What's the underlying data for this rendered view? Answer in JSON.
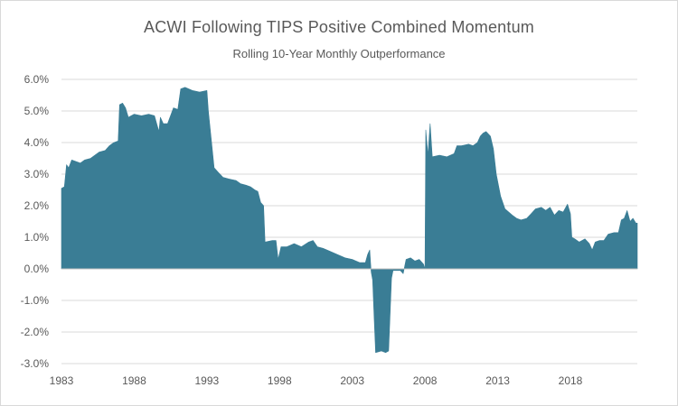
{
  "chart_data": {
    "type": "area",
    "title": "ACWI Following TIPS Positive Combined Momentum",
    "subtitle": "Rolling 10-Year Monthly Outperformance",
    "xlabel": "",
    "ylabel": "",
    "xlim": [
      1983.0,
      2022.6
    ],
    "ylim": [
      -3.0,
      6.0
    ],
    "y_ticks": [
      {
        "value": 6.0,
        "label": "6.0%"
      },
      {
        "value": 5.0,
        "label": "5.0%"
      },
      {
        "value": 4.0,
        "label": "4.0%"
      },
      {
        "value": 3.0,
        "label": "3.0%"
      },
      {
        "value": 2.0,
        "label": "2.0%"
      },
      {
        "value": 1.0,
        "label": "1.0%"
      },
      {
        "value": 0.0,
        "label": "0.0%"
      },
      {
        "value": -1.0,
        "label": "-1.0%"
      },
      {
        "value": -2.0,
        "label": "-2.0%"
      },
      {
        "value": -3.0,
        "label": "-3.0%"
      }
    ],
    "x_ticks": [
      {
        "value": 1983,
        "label": "1983"
      },
      {
        "value": 1988,
        "label": "1988"
      },
      {
        "value": 1993,
        "label": "1993"
      },
      {
        "value": 1998,
        "label": "1998"
      },
      {
        "value": 2003,
        "label": "2003"
      },
      {
        "value": 2008,
        "label": "2008"
      },
      {
        "value": 2013,
        "label": "2013"
      },
      {
        "value": 2018,
        "label": "2018"
      }
    ],
    "grid": true,
    "colors": {
      "area": "#3a7d95",
      "grid": "#d9d9d9",
      "text": "#595959"
    },
    "series": [
      {
        "name": "",
        "points": [
          [
            1983.0,
            2.55
          ],
          [
            1983.2,
            2.6
          ],
          [
            1983.35,
            3.3
          ],
          [
            1983.5,
            3.2
          ],
          [
            1983.7,
            3.45
          ],
          [
            1984.0,
            3.4
          ],
          [
            1984.3,
            3.35
          ],
          [
            1984.6,
            3.45
          ],
          [
            1985.0,
            3.5
          ],
          [
            1985.3,
            3.6
          ],
          [
            1985.6,
            3.7
          ],
          [
            1986.0,
            3.75
          ],
          [
            1986.3,
            3.9
          ],
          [
            1986.6,
            4.0
          ],
          [
            1986.9,
            4.05
          ],
          [
            1987.0,
            5.2
          ],
          [
            1987.2,
            5.25
          ],
          [
            1987.4,
            5.1
          ],
          [
            1987.6,
            4.8
          ],
          [
            1987.8,
            4.85
          ],
          [
            1988.0,
            4.9
          ],
          [
            1988.5,
            4.85
          ],
          [
            1989.0,
            4.9
          ],
          [
            1989.4,
            4.85
          ],
          [
            1989.7,
            4.35
          ],
          [
            1989.8,
            4.8
          ],
          [
            1990.0,
            4.6
          ],
          [
            1990.3,
            4.6
          ],
          [
            1990.7,
            5.1
          ],
          [
            1991.0,
            5.05
          ],
          [
            1991.2,
            5.7
          ],
          [
            1991.5,
            5.75
          ],
          [
            1992.0,
            5.65
          ],
          [
            1992.5,
            5.6
          ],
          [
            1993.0,
            5.65
          ],
          [
            1993.1,
            5.0
          ],
          [
            1993.3,
            4.1
          ],
          [
            1993.5,
            3.2
          ],
          [
            1993.8,
            3.05
          ],
          [
            1994.1,
            2.9
          ],
          [
            1994.5,
            2.85
          ],
          [
            1995.0,
            2.8
          ],
          [
            1995.3,
            2.7
          ],
          [
            1995.7,
            2.65
          ],
          [
            1996.0,
            2.6
          ],
          [
            1996.3,
            2.5
          ],
          [
            1996.5,
            2.45
          ],
          [
            1996.7,
            2.1
          ],
          [
            1996.9,
            2.0
          ],
          [
            1997.0,
            0.85
          ],
          [
            1997.5,
            0.9
          ],
          [
            1997.75,
            0.9
          ],
          [
            1997.9,
            0.3
          ],
          [
            1998.1,
            0.7
          ],
          [
            1998.5,
            0.7
          ],
          [
            1999.0,
            0.8
          ],
          [
            1999.5,
            0.7
          ],
          [
            2000.0,
            0.85
          ],
          [
            2000.3,
            0.9
          ],
          [
            2000.6,
            0.7
          ],
          [
            2001.0,
            0.65
          ],
          [
            2001.5,
            0.55
          ],
          [
            2002.0,
            0.45
          ],
          [
            2002.5,
            0.35
          ],
          [
            2003.0,
            0.3
          ],
          [
            2003.5,
            0.2
          ],
          [
            2003.9,
            0.2
          ],
          [
            2004.05,
            0.45
          ],
          [
            2004.2,
            0.6
          ],
          [
            2004.3,
            -0.1
          ],
          [
            2004.4,
            -0.35
          ],
          [
            2004.5,
            -1.5
          ],
          [
            2004.6,
            -2.65
          ],
          [
            2005.0,
            -2.6
          ],
          [
            2005.3,
            -2.65
          ],
          [
            2005.5,
            -2.6
          ],
          [
            2005.7,
            -0.3
          ],
          [
            2005.8,
            -0.05
          ],
          [
            2006.0,
            -0.05
          ],
          [
            2006.3,
            -0.05
          ],
          [
            2006.5,
            -0.15
          ],
          [
            2006.7,
            0.3
          ],
          [
            2007.0,
            0.35
          ],
          [
            2007.3,
            0.25
          ],
          [
            2007.6,
            0.3
          ],
          [
            2007.9,
            0.15
          ],
          [
            2008.0,
            0.0
          ],
          [
            2008.05,
            4.4
          ],
          [
            2008.2,
            3.6
          ],
          [
            2008.35,
            4.6
          ],
          [
            2008.5,
            3.55
          ],
          [
            2009.0,
            3.6
          ],
          [
            2009.5,
            3.55
          ],
          [
            2010.0,
            3.65
          ],
          [
            2010.2,
            3.9
          ],
          [
            2010.5,
            3.9
          ],
          [
            2011.0,
            3.95
          ],
          [
            2011.3,
            3.9
          ],
          [
            2011.6,
            4.0
          ],
          [
            2011.8,
            4.2
          ],
          [
            2012.0,
            4.3
          ],
          [
            2012.2,
            4.35
          ],
          [
            2012.5,
            4.2
          ],
          [
            2012.7,
            3.8
          ],
          [
            2012.9,
            3.0
          ],
          [
            2013.2,
            2.3
          ],
          [
            2013.5,
            1.9
          ],
          [
            2014.0,
            1.7
          ],
          [
            2014.3,
            1.6
          ],
          [
            2014.6,
            1.55
          ],
          [
            2015.0,
            1.6
          ],
          [
            2015.3,
            1.75
          ],
          [
            2015.6,
            1.9
          ],
          [
            2016.0,
            1.95
          ],
          [
            2016.3,
            1.85
          ],
          [
            2016.6,
            1.95
          ],
          [
            2016.9,
            1.7
          ],
          [
            2017.2,
            1.85
          ],
          [
            2017.5,
            1.8
          ],
          [
            2017.8,
            2.05
          ],
          [
            2018.0,
            1.75
          ],
          [
            2018.1,
            1.0
          ],
          [
            2018.3,
            0.95
          ],
          [
            2018.6,
            0.85
          ],
          [
            2019.0,
            0.95
          ],
          [
            2019.3,
            0.8
          ],
          [
            2019.5,
            0.6
          ],
          [
            2019.7,
            0.85
          ],
          [
            2020.0,
            0.9
          ],
          [
            2020.3,
            0.9
          ],
          [
            2020.6,
            1.1
          ],
          [
            2021.0,
            1.15
          ],
          [
            2021.3,
            1.15
          ],
          [
            2021.5,
            1.55
          ],
          [
            2021.7,
            1.6
          ],
          [
            2021.9,
            1.85
          ],
          [
            2022.1,
            1.5
          ],
          [
            2022.3,
            1.6
          ],
          [
            2022.5,
            1.45
          ],
          [
            2022.6,
            1.45
          ]
        ]
      }
    ]
  }
}
